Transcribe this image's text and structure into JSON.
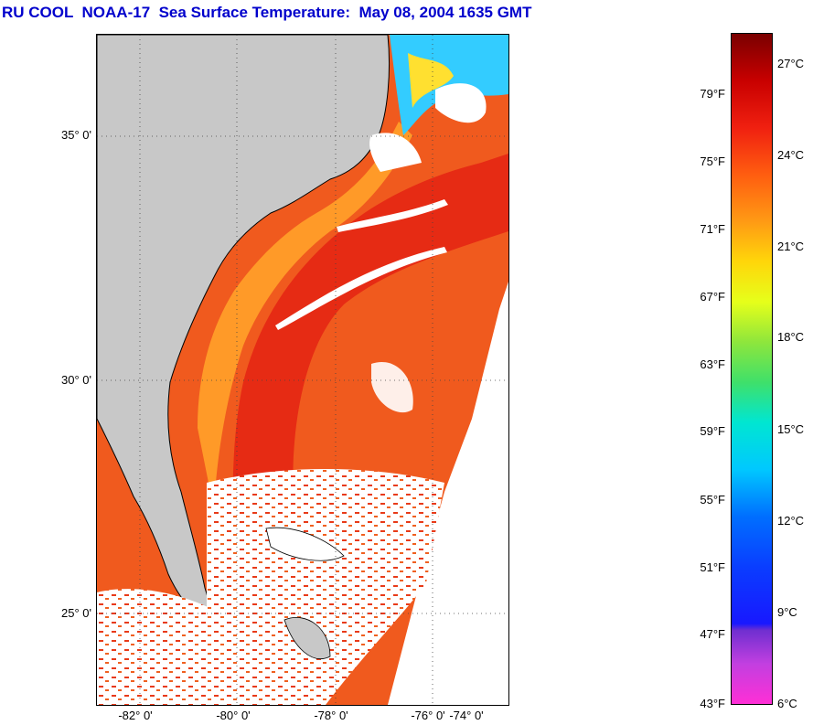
{
  "title": "RU COOL  NOAA-17  Sea Surface Temperature:  May 08, 2004 1635 GMT",
  "map": {
    "latitude_labels": [
      "35° 0'",
      "30° 0'",
      "25° 0'"
    ],
    "longitude_labels": [
      "-82° 0'",
      "-80° 0'",
      "-78° 0'",
      "-76° 0'",
      "-74° 0'"
    ],
    "colors": {
      "land": "#c8c8c8",
      "cloud": "#ffffff",
      "warm_ocean": "#f05a1e",
      "shelf_water": "#ff9a28",
      "gulf_stream": "#e62b14",
      "cold_water": "#33ccff"
    }
  },
  "colorbar": {
    "fahrenheit_labels": [
      "79°F",
      "75°F",
      "71°F",
      "67°F",
      "63°F",
      "59°F",
      "55°F",
      "51°F",
      "47°F",
      "43°F"
    ],
    "celsius_labels": [
      "27°C",
      "24°C",
      "21°C",
      "18°C",
      "15°C",
      "12°C",
      "9°C",
      "6°C"
    ]
  }
}
